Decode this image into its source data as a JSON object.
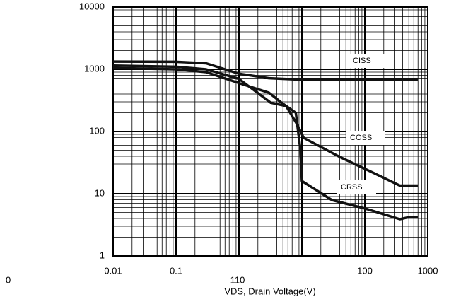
{
  "chart_data": {
    "type": "line",
    "log_x": true,
    "log_y": true,
    "grid": true,
    "x_label": "VDS, Drain Voltage(V)",
    "annotations": [
      "0",
      "110"
    ],
    "xlim": [
      0.01,
      1000
    ],
    "ylim": [
      1,
      10000
    ],
    "xticks": [
      0.01,
      0.1,
      100,
      1000
    ],
    "yticks": [
      1,
      10,
      100,
      1000,
      10000
    ],
    "series": [
      {
        "name": "CISS",
        "color": "#111111",
        "x": [
          0.01,
          0.1,
          0.3,
          0.6,
          1,
          3,
          10,
          100,
          700
        ],
        "values": [
          1330,
          1320,
          1250,
          1000,
          850,
          720,
          680,
          680,
          680
        ]
      },
      {
        "name": "COSS",
        "color": "#111111",
        "x": [
          0.01,
          0.1,
          0.3,
          1,
          3.2,
          5.6,
          8.3,
          10.7,
          40,
          145,
          360,
          700
        ],
        "values": [
          1150,
          1100,
          1000,
          700,
          290,
          257,
          133,
          79,
          39,
          21,
          13.5,
          13.5
        ]
      },
      {
        "name": "CRSS",
        "color": "#111111",
        "x": [
          0.01,
          0.1,
          0.3,
          1,
          3,
          5,
          8,
          9.5,
          10,
          30,
          100,
          360,
          500,
          700
        ],
        "values": [
          1050,
          1000,
          900,
          600,
          420,
          280,
          200,
          50,
          16,
          7.9,
          5.8,
          3.9,
          4.2,
          4.2
        ]
      }
    ]
  }
}
